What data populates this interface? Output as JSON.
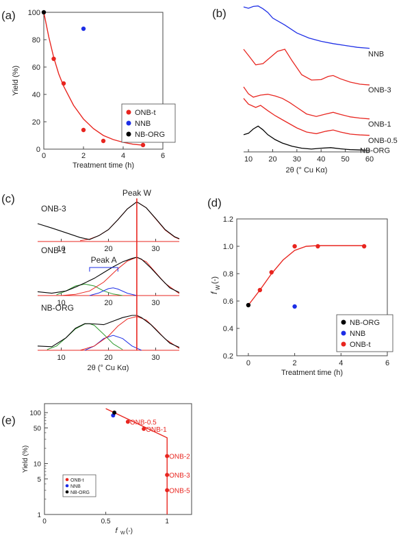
{
  "colors": {
    "red": "#e8251f",
    "blue": "#1d2ee6",
    "black": "#000000",
    "green": "#2e9a2e",
    "axis": "#444444"
  },
  "chart_data": [
    {
      "id": "a",
      "type": "scatter",
      "panel_label": "(a)",
      "xlabel": "Treatment time (h)",
      "ylabel": "Yield (%)",
      "xlim": [
        0,
        6
      ],
      "ylim": [
        0,
        100
      ],
      "xticks": [
        0,
        2,
        4,
        6
      ],
      "yticks": [
        0,
        20,
        40,
        60,
        80,
        100
      ],
      "legend": {
        "placement": "bottom-right",
        "entries": [
          "ONB-t",
          "NNB",
          "NB-ORG"
        ]
      },
      "series": [
        {
          "name": "ONB-t",
          "color": "red",
          "x": [
            0.5,
            1,
            2,
            3,
            5
          ],
          "y": [
            66,
            48,
            14,
            6,
            3
          ]
        },
        {
          "name": "NNB",
          "color": "blue",
          "x": [
            2
          ],
          "y": [
            88
          ]
        },
        {
          "name": "NB-ORG",
          "color": "black",
          "x": [
            0
          ],
          "y": [
            100
          ]
        }
      ],
      "fit": {
        "color": "red",
        "x": [
          0,
          0.25,
          0.5,
          0.75,
          1,
          1.5,
          2,
          2.5,
          3,
          3.5,
          4,
          4.5,
          5
        ],
        "y": [
          100,
          82,
          67,
          55,
          46,
          32,
          22,
          15,
          10,
          7,
          5,
          3.6,
          2.9
        ]
      }
    },
    {
      "id": "b",
      "type": "line",
      "panel_label": "(b)",
      "xlabel": "2θ (° Cu Kα)",
      "ylabel": "",
      "xlim": [
        8,
        60
      ],
      "xticks": [
        10,
        20,
        30,
        40,
        50,
        60
      ],
      "series": [
        {
          "name": "NNB",
          "color": "blue",
          "x": [
            8,
            10,
            12,
            14,
            16,
            18,
            20,
            25,
            30,
            35,
            40,
            45,
            50,
            55,
            60
          ],
          "y": [
            0.94,
            0.91,
            0.95,
            0.96,
            0.9,
            0.82,
            0.7,
            0.55,
            0.38,
            0.27,
            0.2,
            0.15,
            0.11,
            0.07,
            0.05
          ]
        },
        {
          "name": "ONB-3",
          "color": "red",
          "x": [
            8,
            10,
            13,
            16,
            19,
            22,
            25,
            28,
            32,
            36,
            40,
            43,
            45,
            48,
            52,
            56,
            60
          ],
          "y": [
            0.9,
            0.75,
            0.52,
            0.55,
            0.7,
            0.85,
            0.9,
            0.62,
            0.28,
            0.15,
            0.16,
            0.24,
            0.26,
            0.18,
            0.1,
            0.05,
            0.03
          ]
        },
        {
          "name": "ONB-1",
          "color": "red",
          "x": [
            8,
            10,
            12,
            15,
            18,
            21,
            24,
            27,
            30,
            34,
            38,
            42,
            45,
            48,
            52,
            56,
            60
          ],
          "y": [
            0.8,
            0.63,
            0.55,
            0.6,
            0.62,
            0.58,
            0.52,
            0.42,
            0.3,
            0.14,
            0.08,
            0.14,
            0.18,
            0.13,
            0.07,
            0.04,
            0.02
          ]
        },
        {
          "name": "ONB-0.5",
          "color": "red",
          "x": [
            8,
            10,
            13,
            15,
            18,
            21,
            24,
            27,
            30,
            34,
            38,
            42,
            45,
            48,
            52,
            56,
            60
          ],
          "y": [
            0.92,
            0.78,
            0.7,
            0.75,
            0.62,
            0.5,
            0.4,
            0.3,
            0.2,
            0.1,
            0.06,
            0.12,
            0.15,
            0.1,
            0.05,
            0.03,
            0.02
          ]
        },
        {
          "name": "NB-ORG",
          "color": "black",
          "x": [
            8,
            10,
            12,
            14,
            16,
            18,
            21,
            24,
            28,
            32,
            36,
            40,
            44,
            48,
            52,
            56,
            60
          ],
          "y": [
            0.55,
            0.6,
            0.75,
            0.85,
            0.72,
            0.55,
            0.38,
            0.26,
            0.15,
            0.08,
            0.05,
            0.08,
            0.1,
            0.06,
            0.03,
            0.02,
            0.01
          ]
        }
      ]
    },
    {
      "id": "c",
      "type": "line",
      "panel_label": "(c)",
      "xlabel": "2θ (° Cu Kα)",
      "ylabel": "",
      "xlim": [
        5,
        35
      ],
      "xticks": [
        10,
        20,
        30
      ],
      "annotations": [
        "Peak W",
        "Peak A"
      ],
      "panels": [
        {
          "name": "ONB-3",
          "data": {
            "x": [
              5,
              8,
              11,
              14,
              16,
              18,
              20,
              22,
              24,
              26,
              28,
              30,
              32,
              34,
              35
            ],
            "y": [
              0.45,
              0.34,
              0.22,
              0.1,
              0.05,
              0.15,
              0.3,
              0.55,
              0.82,
              1.0,
              0.85,
              0.58,
              0.3,
              0.12,
              0.07
            ]
          },
          "fit": {
            "x": [
              14,
              16,
              18,
              20,
              22,
              24,
              26,
              28,
              30,
              32,
              34,
              35
            ],
            "y": [
              0.02,
              0.06,
              0.15,
              0.3,
              0.55,
              0.82,
              1.0,
              0.85,
              0.57,
              0.29,
              0.11,
              0.06
            ]
          }
        },
        {
          "name": "ONB-1",
          "data": {
            "x": [
              5,
              8,
              11,
              13,
              15,
              17,
              19,
              21,
              23,
              25,
              26,
              27,
              29,
              31,
              33,
              35
            ],
            "y": [
              0.1,
              0.06,
              0.12,
              0.22,
              0.33,
              0.45,
              0.6,
              0.75,
              0.88,
              0.97,
              1.0,
              0.95,
              0.72,
              0.45,
              0.2,
              0.08
            ]
          },
          "fit": {
            "x": [
              10,
              13,
              16,
              19,
              22,
              24,
              26,
              28,
              30,
              32,
              35
            ],
            "y": [
              0.0,
              0.03,
              0.12,
              0.35,
              0.7,
              0.9,
              1.0,
              0.88,
              0.6,
              0.32,
              0.05
            ]
          },
          "green": {
            "x": [
              9,
              11,
              13,
              15,
              17,
              19,
              21,
              23
            ],
            "y": [
              0.02,
              0.12,
              0.25,
              0.3,
              0.25,
              0.12,
              0.04,
              0.0
            ]
          },
          "blue": {
            "x": [
              16,
              18,
              20,
              21,
              22,
              24,
              26
            ],
            "y": [
              0.0,
              0.07,
              0.18,
              0.2,
              0.17,
              0.06,
              0.0
            ]
          }
        },
        {
          "name": "NB-ORG",
          "data": {
            "x": [
              5,
              8,
              11,
              13,
              15,
              17,
              19,
              21,
              23,
              25,
              26,
              27,
              29,
              31,
              33,
              35
            ],
            "y": [
              0.12,
              0.1,
              0.35,
              0.62,
              0.75,
              0.74,
              0.72,
              0.82,
              0.92,
              0.98,
              0.98,
              0.92,
              0.72,
              0.45,
              0.2,
              0.08
            ]
          },
          "fit": {
            "x": [
              14,
              17,
              20,
              22,
              24,
              26,
              28,
              30,
              32,
              35
            ],
            "y": [
              0.0,
              0.12,
              0.4,
              0.68,
              0.88,
              0.95,
              0.85,
              0.6,
              0.32,
              0.05
            ]
          },
          "green": {
            "x": [
              7,
              9,
              11,
              13,
              15,
              16,
              17,
              19,
              21,
              23
            ],
            "y": [
              0.02,
              0.12,
              0.35,
              0.6,
              0.74,
              0.75,
              0.7,
              0.45,
              0.18,
              0.02
            ]
          },
          "blue": {
            "x": [
              15,
              17,
              19,
              21,
              23,
              25,
              27
            ],
            "y": [
              0.0,
              0.12,
              0.33,
              0.42,
              0.33,
              0.12,
              0.0
            ]
          }
        }
      ],
      "peak_w_position": 26,
      "peak_a_range": [
        16,
        22
      ]
    },
    {
      "id": "d",
      "type": "scatter",
      "panel_label": "(d)",
      "xlabel": "Treatment time (h)",
      "ylabel_main": "f",
      "ylabel_sub": "W",
      "ylabel_unit": "(-)",
      "xlim": [
        -0.5,
        6
      ],
      "ylim": [
        0.2,
        1.2
      ],
      "xticks": [
        0,
        2,
        4,
        6
      ],
      "yticks": [
        0.2,
        0.4,
        0.6,
        0.8,
        1.0,
        1.2
      ],
      "legend": {
        "placement": "bottom-right",
        "entries": [
          "NB-ORG",
          "NNB",
          "ONB-t"
        ]
      },
      "series": [
        {
          "name": "NB-ORG",
          "color": "black",
          "x": [
            0
          ],
          "y": [
            0.57
          ]
        },
        {
          "name": "NNB",
          "color": "blue",
          "x": [
            2
          ],
          "y": [
            0.56
          ]
        },
        {
          "name": "ONB-t",
          "color": "red",
          "x": [
            0.5,
            1,
            2,
            3,
            5
          ],
          "y": [
            0.68,
            0.81,
            1.0,
            1.0,
            1.0
          ]
        }
      ],
      "fit": {
        "color": "red",
        "x": [
          0,
          0.5,
          1,
          1.5,
          2,
          2.5,
          3,
          4,
          5
        ],
        "y": [
          0.57,
          0.68,
          0.8,
          0.9,
          0.97,
          1.0,
          1.005,
          1.005,
          1.005
        ]
      }
    },
    {
      "id": "e",
      "type": "scatter",
      "panel_label": "(e)",
      "xlabel_main": "f",
      "xlabel_sub": "W",
      "xlabel_unit": "(-)",
      "ylabel": "Yield (%)",
      "xlim": [
        0,
        1.2
      ],
      "ylim": [
        1,
        150
      ],
      "yscale": "log",
      "xticks": [
        0,
        0.5,
        1
      ],
      "yticks": [
        1,
        5,
        10,
        50,
        100
      ],
      "legend": {
        "placement": "bottom-left",
        "entries": [
          "ONB-t",
          "NNB",
          "NB-ORG"
        ]
      },
      "series": [
        {
          "name": "ONB-t",
          "color": "red",
          "x": [
            0.68,
            0.81,
            1,
            1,
            1
          ],
          "y": [
            66,
            48,
            14,
            6,
            3
          ]
        },
        {
          "name": "NNB",
          "color": "blue",
          "x": [
            0.56
          ],
          "y": [
            88
          ]
        },
        {
          "name": "NB-ORG",
          "color": "black",
          "x": [
            0.57
          ],
          "y": [
            100
          ]
        }
      ],
      "point_labels": [
        {
          "text": "ONB-0.5",
          "x": 0.68,
          "y": 66
        },
        {
          "text": "ONB-1",
          "x": 0.81,
          "y": 48
        },
        {
          "text": "ONB-2",
          "x": 1,
          "y": 14
        },
        {
          "text": "ONB-3",
          "x": 1,
          "y": 6
        },
        {
          "text": "ONB-5",
          "x": 1,
          "y": 3
        }
      ],
      "fit": {
        "color": "red",
        "x": [
          0.5,
          1.0,
          1.0
        ],
        "y": [
          120,
          32,
          1
        ]
      }
    }
  ]
}
